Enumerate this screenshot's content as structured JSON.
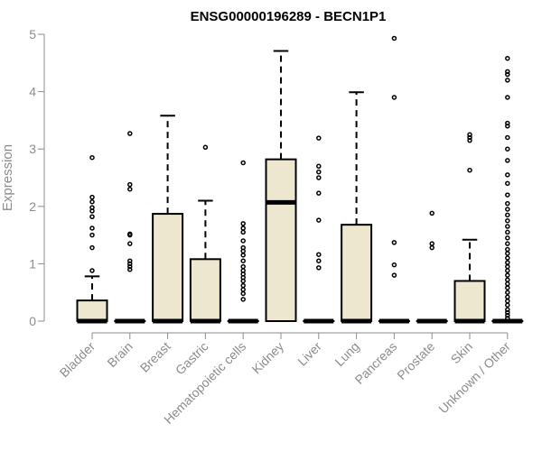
{
  "chart_data": {
    "type": "box",
    "title": "ENSG00000196289 - BECN1P1",
    "xlabel": "",
    "ylabel": "Expression",
    "ylim": [
      0,
      5
    ],
    "yticks": [
      0,
      1,
      2,
      3,
      4,
      5
    ],
    "ytick_labels": [
      "0",
      "1",
      "2",
      "3",
      "4",
      "5"
    ],
    "grid": false,
    "colors": {
      "box_fill": "#ede7cf",
      "box_stroke": "#000000",
      "axis": "#8c8c8c"
    },
    "categories": [
      "Bladder",
      "Brain",
      "Breast",
      "Gastric",
      "Hematopoietic cells",
      "Kidney",
      "Liver",
      "Lung",
      "Pancreas",
      "Prostate",
      "Skin",
      "Unknown / Other"
    ],
    "boxes": [
      {
        "q1": 0,
        "median": 0,
        "q3": 0.36,
        "whisker_low": 0,
        "whisker_high": 0.78,
        "outliers": [
          0.88,
          1.28,
          1.5,
          1.62,
          1.82,
          1.92,
          1.98,
          2.08,
          2.16,
          2.85
        ]
      },
      {
        "q1": 0,
        "median": 0,
        "q3": 0,
        "whisker_low": 0,
        "whisker_high": 0,
        "outliers": [
          0.9,
          0.95,
          1.0,
          1.05,
          1.35,
          1.5,
          1.52,
          2.3,
          2.38,
          3.27
        ]
      },
      {
        "q1": 0,
        "median": 0,
        "q3": 1.87,
        "whisker_low": 0,
        "whisker_high": 3.58,
        "outliers": []
      },
      {
        "q1": 0,
        "median": 0,
        "q3": 1.08,
        "whisker_low": 0,
        "whisker_high": 2.1,
        "outliers": [
          3.03
        ]
      },
      {
        "q1": 0,
        "median": 0,
        "q3": 0,
        "whisker_low": 0,
        "whisker_high": 0,
        "outliers": [
          0.38,
          0.48,
          0.55,
          0.62,
          0.7,
          0.76,
          0.82,
          0.88,
          0.95,
          1.05,
          1.15,
          1.22,
          1.28,
          1.4,
          1.55,
          1.62,
          1.7,
          2.76
        ]
      },
      {
        "q1": 0,
        "median": 2.07,
        "q3": 2.82,
        "whisker_low": 0,
        "whisker_high": 4.71,
        "outliers": []
      },
      {
        "q1": 0,
        "median": 0,
        "q3": 0,
        "whisker_low": 0,
        "whisker_high": 0,
        "outliers": [
          0.93,
          1.05,
          1.16,
          1.76,
          2.23,
          2.5,
          2.6,
          2.7,
          3.19
        ]
      },
      {
        "q1": 0,
        "median": 0,
        "q3": 1.68,
        "whisker_low": 0,
        "whisker_high": 3.99,
        "outliers": []
      },
      {
        "q1": 0,
        "median": 0,
        "q3": 0,
        "whisker_low": 0,
        "whisker_high": 0,
        "outliers": [
          0.8,
          0.98,
          1.37,
          3.9,
          4.93
        ]
      },
      {
        "q1": 0,
        "median": 0,
        "q3": 0,
        "whisker_low": 0,
        "whisker_high": 0,
        "outliers": [
          1.28,
          1.35,
          1.88
        ]
      },
      {
        "q1": 0,
        "median": 0,
        "q3": 0.7,
        "whisker_low": 0,
        "whisker_high": 1.42,
        "outliers": [
          2.63,
          3.15,
          3.2,
          3.25
        ]
      },
      {
        "q1": 0,
        "median": 0,
        "q3": 0,
        "whisker_low": 0,
        "whisker_high": 0,
        "outliers": [
          0.05,
          0.1,
          0.15,
          0.2,
          0.28,
          0.35,
          0.42,
          0.5,
          0.58,
          0.65,
          0.72,
          0.8,
          0.88,
          0.95,
          1.02,
          1.1,
          1.18,
          1.25,
          1.35,
          1.45,
          1.55,
          1.65,
          1.75,
          1.85,
          1.95,
          2.05,
          2.2,
          2.4,
          2.55,
          2.8,
          3.0,
          3.2,
          3.4,
          3.45,
          3.9,
          4.2,
          4.3,
          4.35,
          4.58
        ]
      }
    ]
  }
}
